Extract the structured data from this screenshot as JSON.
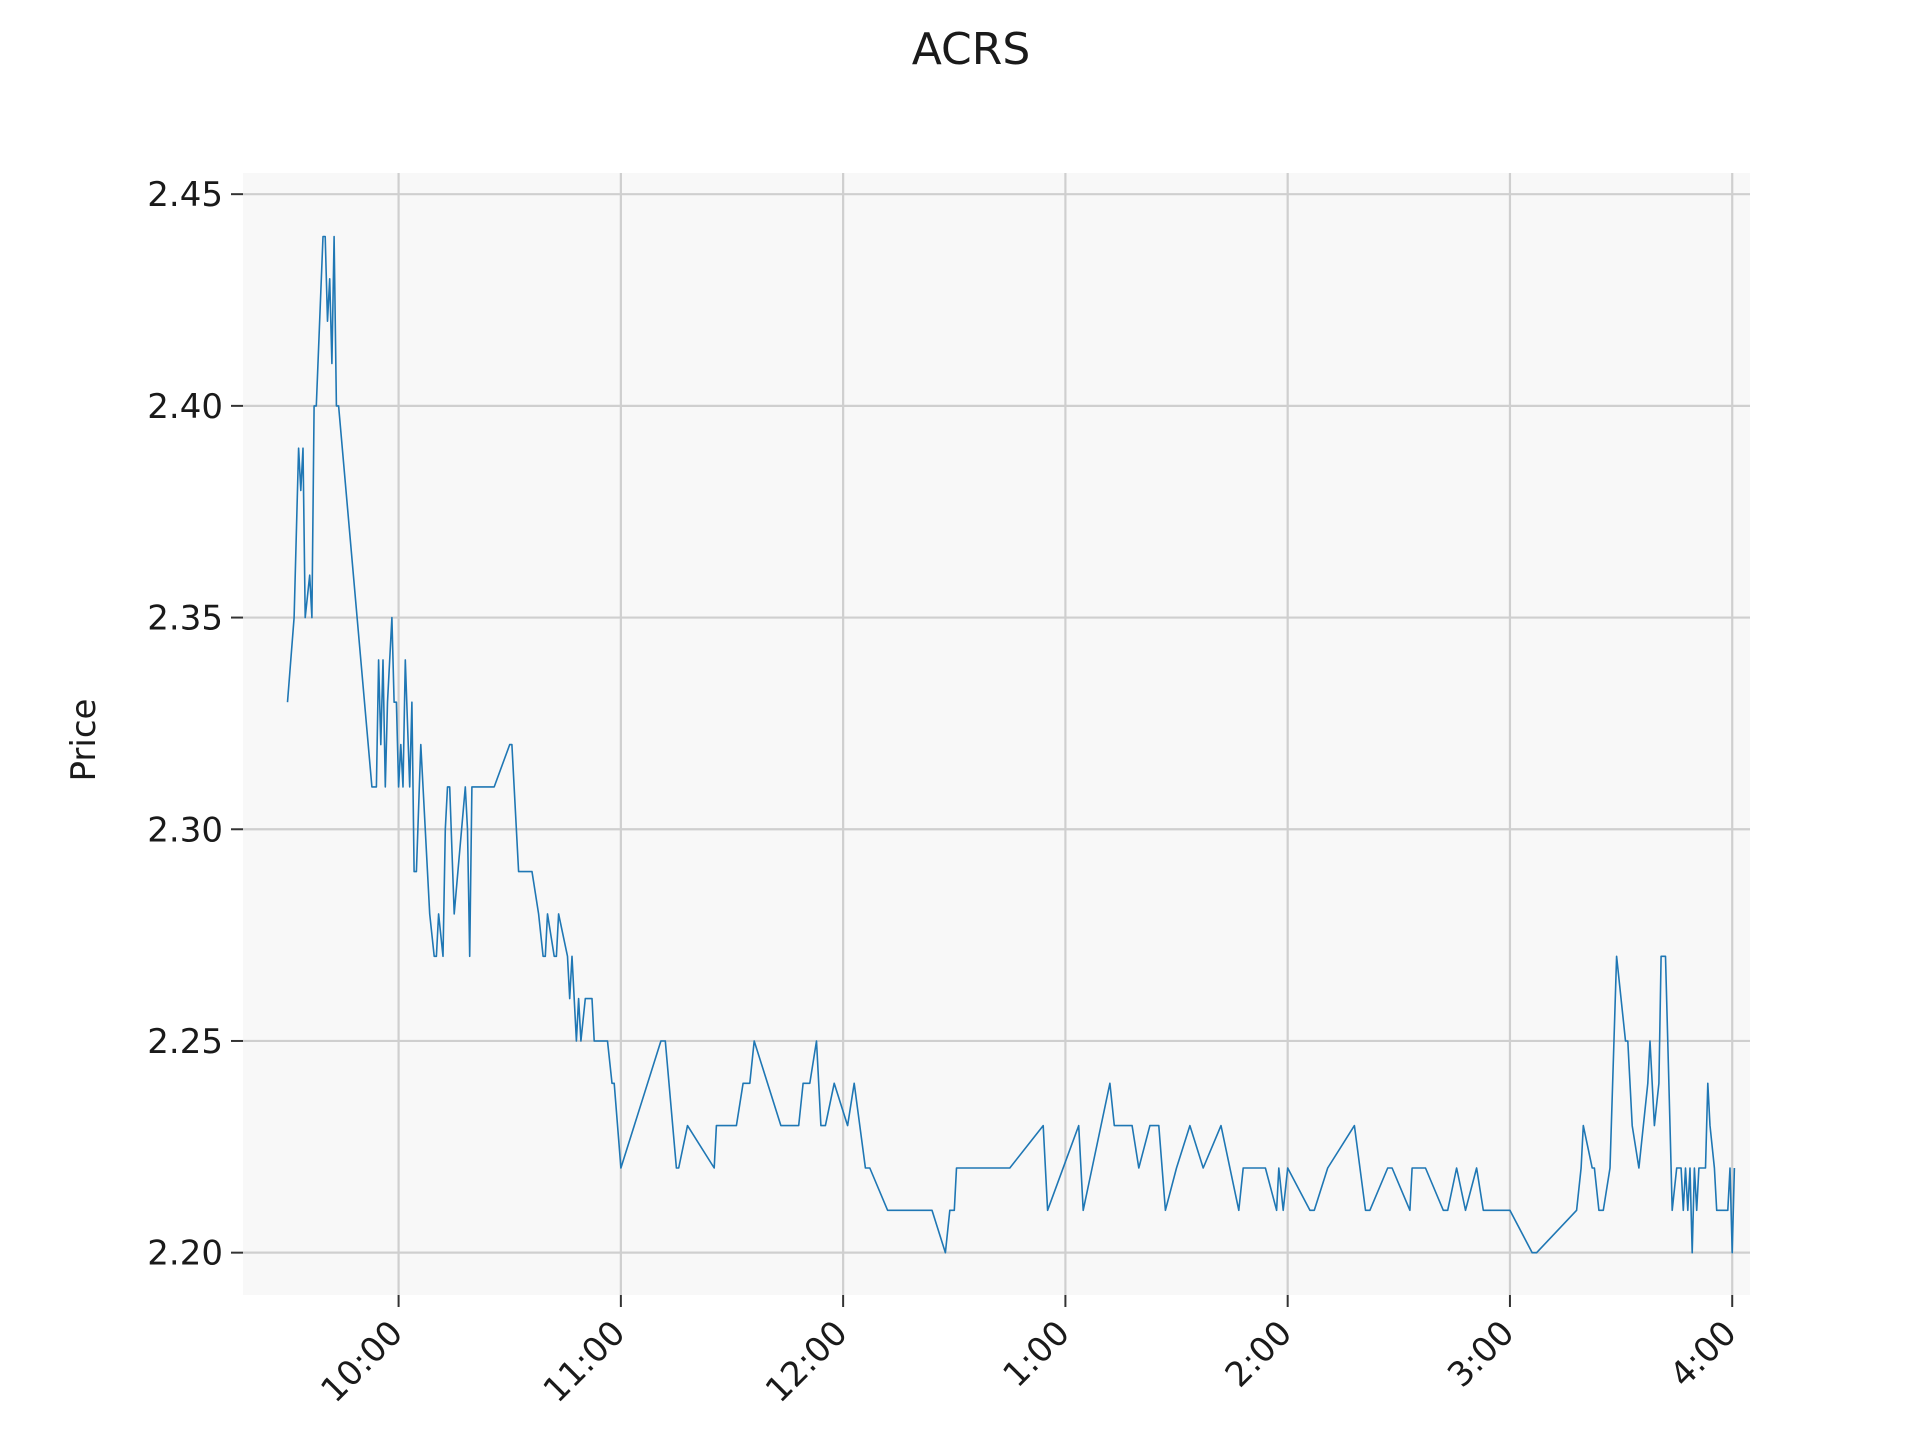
{
  "chart_data": {
    "type": "line",
    "title": "ACRS",
    "ylabel": "Price",
    "xlabel": "",
    "ylim": [
      2.19,
      2.455
    ],
    "xlim": [
      9.3,
      16.08
    ],
    "y_ticks": [
      {
        "value": 2.2,
        "label": "2.20"
      },
      {
        "value": 2.25,
        "label": "2.25"
      },
      {
        "value": 2.3,
        "label": "2.30"
      },
      {
        "value": 2.35,
        "label": "2.35"
      },
      {
        "value": 2.4,
        "label": "2.40"
      },
      {
        "value": 2.45,
        "label": "2.45"
      }
    ],
    "x_ticks": [
      {
        "value": 10,
        "label": "10:00"
      },
      {
        "value": 11,
        "label": "11:00"
      },
      {
        "value": 12,
        "label": "12:00"
      },
      {
        "value": 13,
        "label": "1:00"
      },
      {
        "value": 14,
        "label": "2:00"
      },
      {
        "value": 15,
        "label": "3:00"
      },
      {
        "value": 16,
        "label": "4:00"
      }
    ],
    "grid": true,
    "colors": {
      "series": "#1f77b4",
      "plot_bg": "#f8f8f8",
      "grid": "#cfcfcf"
    },
    "series": [
      {
        "x": [
          9.5,
          9.53,
          9.55,
          9.56,
          9.57,
          9.58,
          9.6,
          9.61,
          9.62,
          9.63,
          9.66,
          9.67,
          9.68,
          9.69,
          9.7,
          9.71,
          9.72,
          9.73,
          9.88,
          9.89,
          9.9,
          9.91,
          9.92,
          9.93,
          9.94,
          9.95,
          9.96,
          9.97,
          9.98,
          9.99,
          10.0,
          10.01,
          10.02,
          10.03,
          10.05,
          10.06,
          10.07,
          10.08,
          10.1,
          10.14,
          10.16,
          10.17,
          10.18,
          10.2,
          10.21,
          10.22,
          10.23,
          10.25,
          10.3,
          10.31,
          10.32,
          10.33,
          10.42,
          10.43,
          10.5,
          10.51,
          10.54,
          10.57,
          10.6,
          10.63,
          10.65,
          10.66,
          10.67,
          10.7,
          10.71,
          10.72,
          10.76,
          10.77,
          10.78,
          10.8,
          10.81,
          10.82,
          10.84,
          10.87,
          10.88,
          10.94,
          10.96,
          10.97,
          11.0,
          11.18,
          11.2,
          11.25,
          11.26,
          11.3,
          11.42,
          11.43,
          11.5,
          11.52,
          11.55,
          11.58,
          11.6,
          11.72,
          11.8,
          11.82,
          11.85,
          11.88,
          11.9,
          11.92,
          11.96,
          12.02,
          12.05,
          12.1,
          12.12,
          12.2,
          12.4,
          12.46,
          12.48,
          12.5,
          12.51,
          12.55,
          12.75,
          12.9,
          12.92,
          13.06,
          13.08,
          13.12,
          13.2,
          13.22,
          13.3,
          13.33,
          13.38,
          13.42,
          13.45,
          13.5,
          13.56,
          13.62,
          13.7,
          13.78,
          13.8,
          13.88,
          13.9,
          13.95,
          13.96,
          13.98,
          14.0,
          14.1,
          14.12,
          14.18,
          14.3,
          14.35,
          14.37,
          14.45,
          14.47,
          14.55,
          14.56,
          14.62,
          14.7,
          14.72,
          14.76,
          14.8,
          14.85,
          14.88,
          15.0,
          15.1,
          15.12,
          15.3,
          15.32,
          15.33,
          15.37,
          15.38,
          15.4,
          15.42,
          15.45,
          15.48,
          15.52,
          15.53,
          15.55,
          15.58,
          15.62,
          15.63,
          15.65,
          15.67,
          15.68,
          15.7,
          15.72,
          15.73,
          15.75,
          15.77,
          15.78,
          15.79,
          15.8,
          15.81,
          15.82,
          15.83,
          15.84,
          15.85,
          15.86,
          15.88,
          15.89,
          15.9,
          15.92,
          15.93,
          15.95,
          15.98,
          15.99,
          16.0,
          16.01
        ],
        "y": [
          2.33,
          2.35,
          2.39,
          2.38,
          2.39,
          2.35,
          2.36,
          2.35,
          2.4,
          2.4,
          2.44,
          2.44,
          2.42,
          2.43,
          2.41,
          2.44,
          2.4,
          2.4,
          2.31,
          2.31,
          2.31,
          2.34,
          2.32,
          2.34,
          2.31,
          2.33,
          2.34,
          2.35,
          2.33,
          2.33,
          2.31,
          2.32,
          2.31,
          2.34,
          2.31,
          2.33,
          2.29,
          2.29,
          2.32,
          2.28,
          2.27,
          2.27,
          2.28,
          2.27,
          2.3,
          2.31,
          2.31,
          2.28,
          2.31,
          2.3,
          2.27,
          2.31,
          2.31,
          2.31,
          2.32,
          2.32,
          2.29,
          2.29,
          2.29,
          2.28,
          2.27,
          2.27,
          2.28,
          2.27,
          2.27,
          2.28,
          2.27,
          2.26,
          2.27,
          2.25,
          2.26,
          2.25,
          2.26,
          2.26,
          2.25,
          2.25,
          2.24,
          2.24,
          2.22,
          2.25,
          2.25,
          2.22,
          2.22,
          2.23,
          2.22,
          2.23,
          2.23,
          2.23,
          2.24,
          2.24,
          2.25,
          2.23,
          2.23,
          2.24,
          2.24,
          2.25,
          2.23,
          2.23,
          2.24,
          2.23,
          2.24,
          2.22,
          2.22,
          2.21,
          2.21,
          2.2,
          2.21,
          2.21,
          2.22,
          2.22,
          2.22,
          2.23,
          2.21,
          2.23,
          2.21,
          2.22,
          2.24,
          2.23,
          2.23,
          2.22,
          2.23,
          2.23,
          2.21,
          2.22,
          2.23,
          2.22,
          2.23,
          2.21,
          2.22,
          2.22,
          2.22,
          2.21,
          2.22,
          2.21,
          2.22,
          2.21,
          2.21,
          2.22,
          2.23,
          2.21,
          2.21,
          2.22,
          2.22,
          2.21,
          2.22,
          2.22,
          2.21,
          2.21,
          2.22,
          2.21,
          2.22,
          2.21,
          2.21,
          2.2,
          2.2,
          2.21,
          2.22,
          2.23,
          2.22,
          2.22,
          2.21,
          2.21,
          2.22,
          2.27,
          2.25,
          2.25,
          2.23,
          2.22,
          2.24,
          2.25,
          2.23,
          2.24,
          2.27,
          2.27,
          2.23,
          2.21,
          2.22,
          2.22,
          2.21,
          2.22,
          2.21,
          2.22,
          2.2,
          2.22,
          2.21,
          2.22,
          2.22,
          2.22,
          2.24,
          2.23,
          2.22,
          2.21,
          2.21,
          2.21,
          2.22,
          2.2,
          2.22
        ]
      }
    ]
  }
}
